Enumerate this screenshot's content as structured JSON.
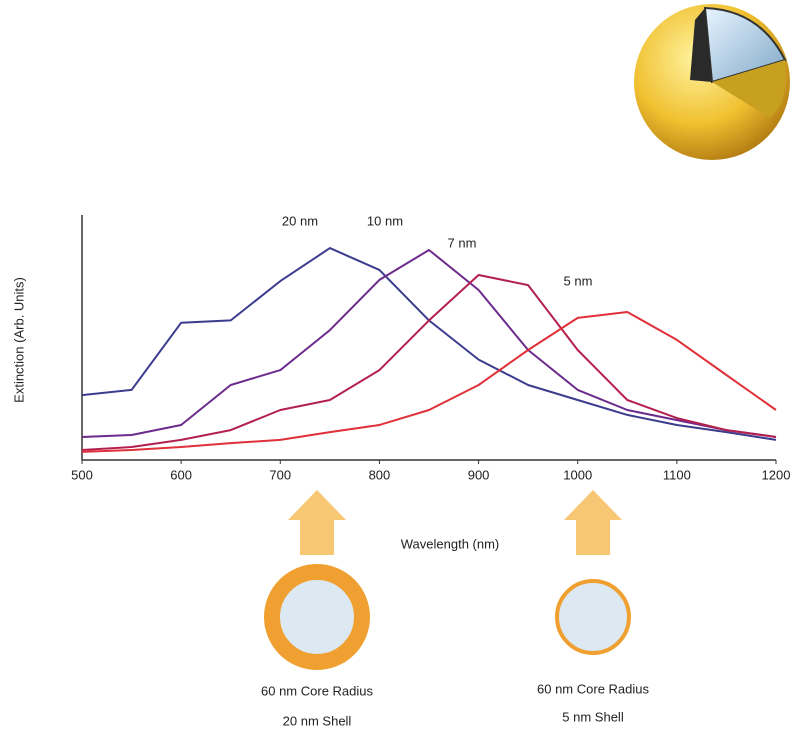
{
  "chart_data": {
    "type": "line",
    "x_label": "Wavelength (nm)",
    "y_label": "Extinction (Arb. Units)",
    "x": [
      500,
      550,
      600,
      650,
      700,
      750,
      800,
      850,
      900,
      950,
      1000,
      1050,
      1100,
      1150,
      1200
    ],
    "xlim": [
      500,
      1200
    ],
    "xticks": [
      500,
      600,
      700,
      800,
      900,
      1000,
      1100,
      1200
    ],
    "ylim": [
      0,
      100
    ],
    "series": [
      {
        "name": "20 nm",
        "color": "#3b3c8e",
        "values": [
          26.5,
          28.6,
          56,
          57,
          73,
          86.5,
          77.6,
          57,
          41,
          30.6,
          24.5,
          18.4,
          14.3,
          11.4,
          8.2
        ]
      },
      {
        "name": "10 nm",
        "color": "#6b2a8c",
        "values": [
          9.4,
          10.2,
          14.3,
          30.6,
          36.7,
          53,
          73.5,
          85.7,
          69.4,
          44.9,
          28.6,
          20.4,
          16.3,
          12.2,
          9.4
        ]
      },
      {
        "name": "7 nm",
        "color": "#b3204e",
        "values": [
          4.1,
          5.3,
          8.2,
          12.2,
          20.4,
          24.5,
          36.7,
          57,
          75.5,
          71.4,
          44.9,
          24.5,
          17.1,
          12.2,
          9.4
        ]
      },
      {
        "name": "5 nm",
        "color": "#e0303a",
        "values": [
          3.3,
          4.1,
          5.3,
          6.9,
          8.2,
          11.4,
          14.3,
          20.4,
          30.6,
          44.9,
          58,
          60.4,
          49,
          34.7,
          20.4
        ]
      }
    ],
    "annotations": [
      "60 nm Core Radius",
      "20 nm Shell",
      "60 nm Core Radius",
      "5 nm Shell"
    ]
  }
}
